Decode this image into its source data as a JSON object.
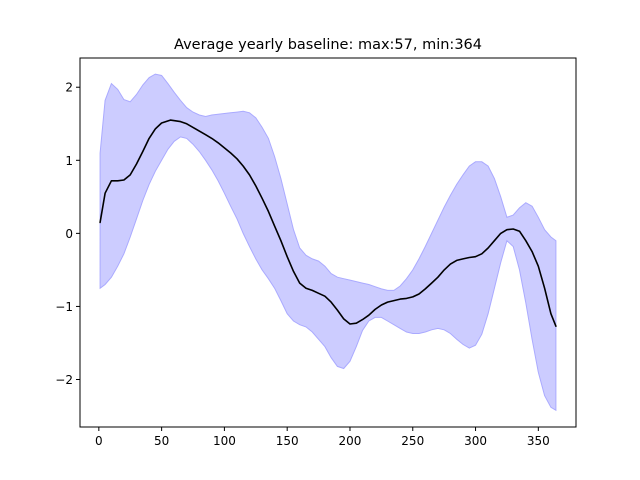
{
  "chart_data": {
    "type": "area",
    "title": "Average yearly baseline: max:57, min:364",
    "xlabel": "",
    "ylabel": "",
    "xlim": [
      -15,
      380
    ],
    "ylim": [
      -2.65,
      2.4
    ],
    "xticks": [
      0,
      50,
      100,
      150,
      200,
      250,
      300,
      350
    ],
    "yticks": [
      -2,
      -1,
      0,
      1,
      2
    ],
    "xtick_labels": [
      "0",
      "50",
      "100",
      "150",
      "200",
      "250",
      "300",
      "350"
    ],
    "ytick_labels": [
      "−2",
      "−1",
      "0",
      "1",
      "2"
    ],
    "grid": false,
    "colors": {
      "mean": "#000000",
      "band_fill": "#ccccff",
      "band_edge": "#aaaaff"
    },
    "mean": {
      "x": [
        1,
        5,
        10,
        15,
        20,
        25,
        30,
        35,
        40,
        45,
        50,
        57,
        65,
        70,
        75,
        80,
        85,
        90,
        95,
        100,
        105,
        110,
        115,
        120,
        125,
        130,
        135,
        140,
        145,
        150,
        155,
        160,
        165,
        170,
        175,
        180,
        185,
        190,
        195,
        200,
        205,
        210,
        215,
        220,
        225,
        230,
        235,
        240,
        245,
        250,
        255,
        260,
        265,
        270,
        275,
        280,
        285,
        290,
        295,
        300,
        305,
        310,
        315,
        320,
        325,
        330,
        335,
        340,
        345,
        350,
        355,
        360,
        364
      ],
      "y": [
        0.15,
        0.55,
        0.72,
        0.72,
        0.73,
        0.8,
        0.95,
        1.12,
        1.3,
        1.43,
        1.51,
        1.55,
        1.53,
        1.5,
        1.45,
        1.4,
        1.35,
        1.3,
        1.24,
        1.17,
        1.1,
        1.02,
        0.92,
        0.8,
        0.65,
        0.48,
        0.3,
        0.1,
        -0.1,
        -0.32,
        -0.52,
        -0.68,
        -0.75,
        -0.78,
        -0.82,
        -0.86,
        -0.94,
        -1.05,
        -1.17,
        -1.24,
        -1.23,
        -1.18,
        -1.12,
        -1.04,
        -0.98,
        -0.94,
        -0.92,
        -0.9,
        -0.89,
        -0.87,
        -0.83,
        -0.76,
        -0.68,
        -0.6,
        -0.5,
        -0.42,
        -0.37,
        -0.35,
        -0.33,
        -0.32,
        -0.28,
        -0.2,
        -0.1,
        0.0,
        0.05,
        0.06,
        0.03,
        -0.1,
        -0.25,
        -0.45,
        -0.75,
        -1.1,
        -1.27
      ]
    },
    "band_upper": {
      "x": [
        1,
        5,
        10,
        15,
        20,
        25,
        30,
        35,
        40,
        45,
        50,
        55,
        60,
        65,
        70,
        75,
        80,
        85,
        90,
        95,
        100,
        105,
        110,
        115,
        120,
        125,
        130,
        135,
        140,
        145,
        150,
        155,
        160,
        165,
        170,
        175,
        180,
        185,
        190,
        195,
        200,
        205,
        210,
        215,
        220,
        225,
        230,
        235,
        240,
        245,
        250,
        255,
        260,
        265,
        270,
        275,
        280,
        285,
        290,
        295,
        300,
        305,
        310,
        315,
        320,
        325,
        330,
        335,
        340,
        345,
        350,
        355,
        360,
        364
      ],
      "y": [
        1.1,
        1.82,
        2.05,
        1.97,
        1.83,
        1.8,
        1.9,
        2.03,
        2.13,
        2.18,
        2.16,
        2.05,
        1.93,
        1.82,
        1.72,
        1.66,
        1.62,
        1.6,
        1.62,
        1.63,
        1.64,
        1.65,
        1.66,
        1.67,
        1.65,
        1.58,
        1.45,
        1.3,
        1.05,
        0.75,
        0.4,
        0.05,
        -0.2,
        -0.3,
        -0.35,
        -0.38,
        -0.45,
        -0.55,
        -0.6,
        -0.62,
        -0.64,
        -0.66,
        -0.68,
        -0.7,
        -0.73,
        -0.76,
        -0.78,
        -0.78,
        -0.72,
        -0.62,
        -0.5,
        -0.35,
        -0.18,
        0.0,
        0.18,
        0.36,
        0.52,
        0.67,
        0.8,
        0.92,
        0.98,
        0.98,
        0.92,
        0.75,
        0.5,
        0.22,
        0.25,
        0.35,
        0.42,
        0.37,
        0.22,
        0.05,
        -0.05,
        -0.1
      ]
    },
    "band_lower": {
      "x": [
        1,
        5,
        10,
        15,
        20,
        25,
        30,
        35,
        40,
        45,
        50,
        55,
        60,
        65,
        70,
        75,
        80,
        85,
        90,
        95,
        100,
        105,
        110,
        115,
        120,
        125,
        130,
        135,
        140,
        145,
        150,
        155,
        160,
        165,
        170,
        175,
        180,
        185,
        190,
        195,
        200,
        205,
        210,
        215,
        220,
        225,
        230,
        235,
        240,
        245,
        250,
        255,
        260,
        265,
        270,
        275,
        280,
        285,
        290,
        295,
        300,
        305,
        310,
        315,
        320,
        325,
        330,
        335,
        340,
        345,
        350,
        355,
        360,
        364
      ],
      "y": [
        -0.75,
        -0.7,
        -0.6,
        -0.45,
        -0.28,
        -0.05,
        0.2,
        0.45,
        0.67,
        0.85,
        1.0,
        1.15,
        1.26,
        1.32,
        1.3,
        1.22,
        1.12,
        1.0,
        0.87,
        0.72,
        0.55,
        0.37,
        0.2,
        0.0,
        -0.18,
        -0.35,
        -0.5,
        -0.62,
        -0.75,
        -0.92,
        -1.1,
        -1.2,
        -1.25,
        -1.28,
        -1.35,
        -1.45,
        -1.55,
        -1.7,
        -1.82,
        -1.85,
        -1.75,
        -1.55,
        -1.33,
        -1.2,
        -1.15,
        -1.15,
        -1.2,
        -1.25,
        -1.3,
        -1.35,
        -1.37,
        -1.37,
        -1.35,
        -1.32,
        -1.3,
        -1.32,
        -1.37,
        -1.45,
        -1.52,
        -1.57,
        -1.53,
        -1.38,
        -1.1,
        -0.75,
        -0.4,
        -0.1,
        -0.18,
        -0.5,
        -0.95,
        -1.45,
        -1.9,
        -2.22,
        -2.38,
        -2.42
      ]
    }
  }
}
